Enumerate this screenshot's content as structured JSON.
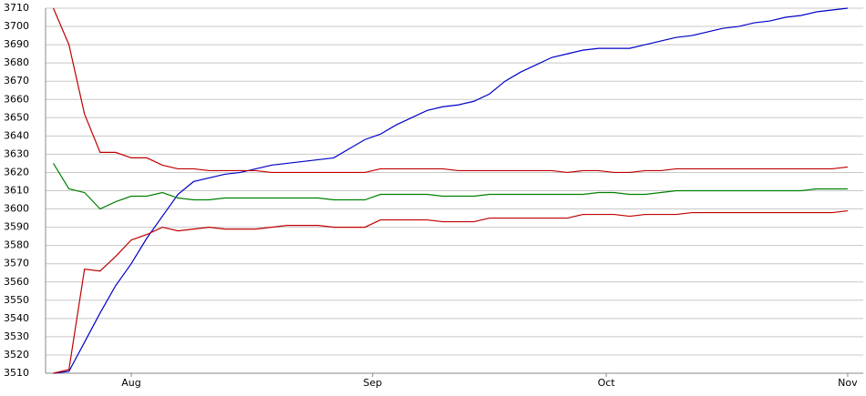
{
  "chart_data": {
    "type": "line",
    "x": [
      -10,
      -8,
      -6,
      -4,
      -2,
      0,
      2,
      4,
      6,
      8,
      10,
      12,
      14,
      16,
      18,
      20,
      22,
      24,
      26,
      28,
      30,
      32,
      34,
      36,
      38,
      40,
      42,
      44,
      46,
      48,
      50,
      52,
      54,
      56,
      58,
      60,
      62,
      64,
      66,
      68,
      70,
      72,
      74,
      76,
      78,
      80,
      82,
      84,
      86,
      88,
      90,
      92
    ],
    "series": [
      {
        "color": "#0000c8",
        "values": [
          3510,
          3511,
          3527,
          3543,
          3558,
          3570,
          3584,
          3596,
          3608,
          3615,
          3617,
          3619,
          3620,
          3622,
          3624,
          3625,
          3626,
          3627,
          3628,
          3633,
          3638,
          3641,
          3646,
          3650,
          3654,
          3656,
          3657,
          3659,
          3663,
          3670,
          3675,
          3679,
          3683,
          3685,
          3687,
          3688,
          3688,
          3688,
          3690,
          3692,
          3694,
          3695,
          3697,
          3699,
          3700,
          3702,
          3703,
          3705,
          3706,
          3708,
          3709,
          3710
        ]
      },
      {
        "color": "#c00000",
        "values": [
          3710,
          3690,
          3652,
          3631,
          3631,
          3628,
          3628,
          3624,
          3622,
          3622,
          3621,
          3621,
          3621,
          3621,
          3620,
          3620,
          3620,
          3620,
          3620,
          3620,
          3620,
          3622,
          3622,
          3622,
          3622,
          3622,
          3621,
          3621,
          3621,
          3621,
          3621,
          3621,
          3621,
          3620,
          3621,
          3621,
          3620,
          3620,
          3621,
          3621,
          3622,
          3622,
          3622,
          3622,
          3622,
          3622,
          3622,
          3622,
          3622,
          3622,
          3622,
          3623
        ]
      },
      {
        "color": "#008000",
        "values": [
          3625,
          3611,
          3609,
          3600,
          3604,
          3607,
          3607,
          3609,
          3606,
          3605,
          3605,
          3606,
          3606,
          3606,
          3606,
          3606,
          3606,
          3606,
          3605,
          3605,
          3605,
          3608,
          3608,
          3608,
          3608,
          3607,
          3607,
          3607,
          3608,
          3608,
          3608,
          3608,
          3608,
          3608,
          3608,
          3609,
          3609,
          3608,
          3608,
          3609,
          3610,
          3610,
          3610,
          3610,
          3610,
          3610,
          3610,
          3610,
          3610,
          3611,
          3611,
          3611
        ]
      },
      {
        "color": "#c00000",
        "values": [
          3510,
          3512,
          3567,
          3566,
          3574,
          3583,
          3586,
          3590,
          3588,
          3589,
          3590,
          3589,
          3589,
          3589,
          3590,
          3591,
          3591,
          3591,
          3590,
          3590,
          3590,
          3594,
          3594,
          3594,
          3594,
          3593,
          3593,
          3593,
          3595,
          3595,
          3595,
          3595,
          3595,
          3595,
          3597,
          3597,
          3597,
          3596,
          3597,
          3597,
          3597,
          3598,
          3598,
          3598,
          3598,
          3598,
          3598,
          3598,
          3598,
          3598,
          3598,
          3599
        ]
      }
    ],
    "xlim": [
      -11,
      94
    ],
    "xticks": [
      {
        "value": 0,
        "label": "Aug"
      },
      {
        "value": 31,
        "label": "Sep"
      },
      {
        "value": 61,
        "label": "Oct"
      },
      {
        "value": 92,
        "label": "Nov"
      }
    ],
    "ylim": [
      3510,
      3710
    ],
    "yticks": [
      3510,
      3520,
      3530,
      3540,
      3550,
      3560,
      3570,
      3580,
      3590,
      3600,
      3610,
      3620,
      3630,
      3640,
      3650,
      3660,
      3670,
      3680,
      3690,
      3700,
      3710
    ],
    "grid": true
  }
}
